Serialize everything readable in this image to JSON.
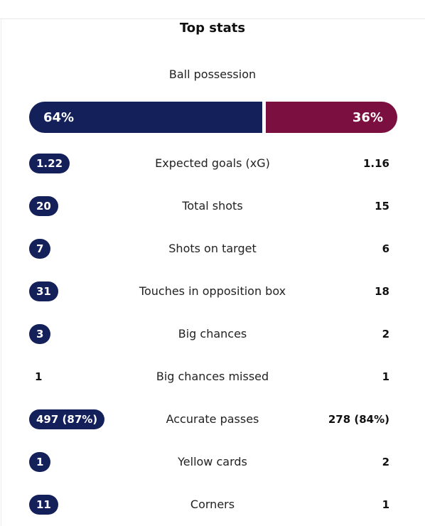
{
  "title": "Top stats",
  "possession": {
    "label": "Ball possession",
    "home": {
      "value": 64,
      "label": "64%"
    },
    "away": {
      "value": 36,
      "label": "36%"
    }
  },
  "rows": [
    {
      "label": "Expected goals (xG)",
      "home": "1.22",
      "away": "1.16",
      "home_pill": true
    },
    {
      "label": "Total shots",
      "home": "20",
      "away": "15",
      "home_pill": true
    },
    {
      "label": "Shots on target",
      "home": "7",
      "away": "6",
      "home_pill": true
    },
    {
      "label": "Touches in opposition box",
      "home": "31",
      "away": "18",
      "home_pill": true
    },
    {
      "label": "Big chances",
      "home": "3",
      "away": "2",
      "home_pill": true
    },
    {
      "label": "Big chances missed",
      "home": "1",
      "away": "1",
      "home_pill": false
    },
    {
      "label": "Accurate passes",
      "home": "497 (87%)",
      "away": "278 (84%)",
      "home_pill": true
    },
    {
      "label": "Yellow cards",
      "home": "1",
      "away": "2",
      "home_pill": true
    },
    {
      "label": "Corners",
      "home": "11",
      "away": "1",
      "home_pill": true
    }
  ]
}
